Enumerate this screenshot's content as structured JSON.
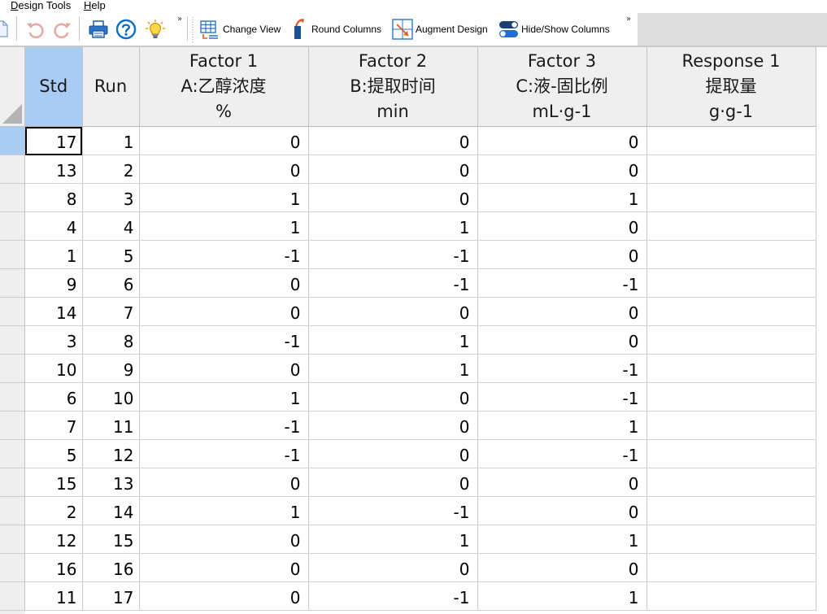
{
  "menu": {
    "items": [
      {
        "label": "Design Tools",
        "mnemonic": "D"
      },
      {
        "label": "Help",
        "mnemonic": "H"
      }
    ]
  },
  "toolbar": {
    "icon_buttons": [
      {
        "name": "new-document",
        "icon": "document-icon"
      },
      {
        "name": "undo",
        "icon": "undo-icon"
      },
      {
        "name": "redo",
        "icon": "redo-icon"
      },
      {
        "name": "print",
        "icon": "printer-icon"
      },
      {
        "name": "help",
        "icon": "help-icon"
      },
      {
        "name": "tips",
        "icon": "lightbulb-icon"
      }
    ],
    "change_view_label": "Change View",
    "round_columns_label": "Round Columns",
    "augment_design_label": "Augment Design",
    "hide_show_columns_label": "Hide/Show Columns",
    "overflow_glyph": "»"
  },
  "grid": {
    "columns": [
      {
        "key": "std",
        "lines": [
          "Std"
        ]
      },
      {
        "key": "run",
        "lines": [
          "Run"
        ]
      },
      {
        "key": "a",
        "lines": [
          "Factor 1",
          "A:乙醇浓度",
          "%"
        ]
      },
      {
        "key": "b",
        "lines": [
          "Factor 2",
          "B:提取时间",
          "min"
        ]
      },
      {
        "key": "c",
        "lines": [
          "Factor 3",
          "C:液-固比例",
          "mL·g-1"
        ]
      },
      {
        "key": "r",
        "lines": [
          "Response 1",
          "提取量",
          "g·g-1"
        ]
      }
    ],
    "rows": [
      {
        "std": "17",
        "run": "1",
        "a": "0",
        "b": "0",
        "c": "0",
        "r": ""
      },
      {
        "std": "13",
        "run": "2",
        "a": "0",
        "b": "0",
        "c": "0",
        "r": ""
      },
      {
        "std": "8",
        "run": "3",
        "a": "1",
        "b": "0",
        "c": "1",
        "r": ""
      },
      {
        "std": "4",
        "run": "4",
        "a": "1",
        "b": "1",
        "c": "0",
        "r": ""
      },
      {
        "std": "1",
        "run": "5",
        "a": "-1",
        "b": "-1",
        "c": "0",
        "r": ""
      },
      {
        "std": "9",
        "run": "6",
        "a": "0",
        "b": "-1",
        "c": "-1",
        "r": ""
      },
      {
        "std": "14",
        "run": "7",
        "a": "0",
        "b": "0",
        "c": "0",
        "r": ""
      },
      {
        "std": "3",
        "run": "8",
        "a": "-1",
        "b": "1",
        "c": "0",
        "r": ""
      },
      {
        "std": "10",
        "run": "9",
        "a": "0",
        "b": "1",
        "c": "-1",
        "r": ""
      },
      {
        "std": "6",
        "run": "10",
        "a": "1",
        "b": "0",
        "c": "-1",
        "r": ""
      },
      {
        "std": "7",
        "run": "11",
        "a": "-1",
        "b": "0",
        "c": "1",
        "r": ""
      },
      {
        "std": "5",
        "run": "12",
        "a": "-1",
        "b": "0",
        "c": "-1",
        "r": ""
      },
      {
        "std": "15",
        "run": "13",
        "a": "0",
        "b": "0",
        "c": "0",
        "r": ""
      },
      {
        "std": "2",
        "run": "14",
        "a": "1",
        "b": "-1",
        "c": "0",
        "r": ""
      },
      {
        "std": "12",
        "run": "15",
        "a": "0",
        "b": "1",
        "c": "1",
        "r": ""
      },
      {
        "std": "16",
        "run": "16",
        "a": "0",
        "b": "0",
        "c": "0",
        "r": ""
      },
      {
        "std": "11",
        "run": "17",
        "a": "0",
        "b": "-1",
        "c": "1",
        "r": ""
      }
    ],
    "selected_row": 0,
    "selected_column": "std"
  },
  "colors": {
    "selection_header": "#a9ccf5",
    "header_bg": "#efefef",
    "help_blue": "#0b6fc7",
    "toggle_blue": "#1f6fd1"
  }
}
